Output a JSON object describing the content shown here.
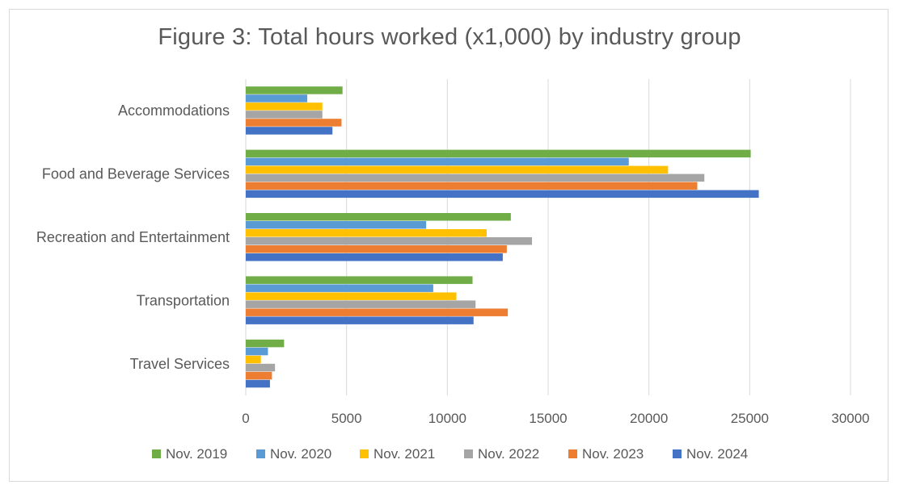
{
  "chart_data": {
    "type": "bar",
    "orientation": "horizontal",
    "title": "Figure 3: Total hours worked (x1,000) by industry group",
    "xlabel": "",
    "ylabel": "",
    "xlim": [
      0,
      30000
    ],
    "x_ticks": [
      "0",
      "5000",
      "10000",
      "15000",
      "20000",
      "25000",
      "30000"
    ],
    "grid": "vertical",
    "legend_position": "bottom",
    "categories": [
      "Accommodations",
      "Food and Beverage Services",
      "Recreation and Entertainment",
      "Transportation",
      "Travel Services"
    ],
    "series": [
      {
        "name": "Nov. 2019",
        "color": "#70ad47",
        "values": [
          4800,
          25050,
          13150,
          11250,
          1900
        ]
      },
      {
        "name": "Nov. 2020",
        "color": "#5b9bd5",
        "values": [
          3050,
          19000,
          8950,
          9300,
          1100
        ]
      },
      {
        "name": "Nov. 2021",
        "color": "#ffc000",
        "values": [
          3800,
          20950,
          11950,
          10450,
          750
        ]
      },
      {
        "name": "Nov. 2022",
        "color": "#a5a5a5",
        "values": [
          3800,
          22750,
          14200,
          11400,
          1450
        ]
      },
      {
        "name": "Nov. 2023",
        "color": "#ed7d31",
        "values": [
          4750,
          22400,
          12950,
          13000,
          1300
        ]
      },
      {
        "name": "Nov. 2024",
        "color": "#4472c4",
        "values": [
          4300,
          25450,
          12750,
          11300,
          1200
        ]
      }
    ]
  }
}
